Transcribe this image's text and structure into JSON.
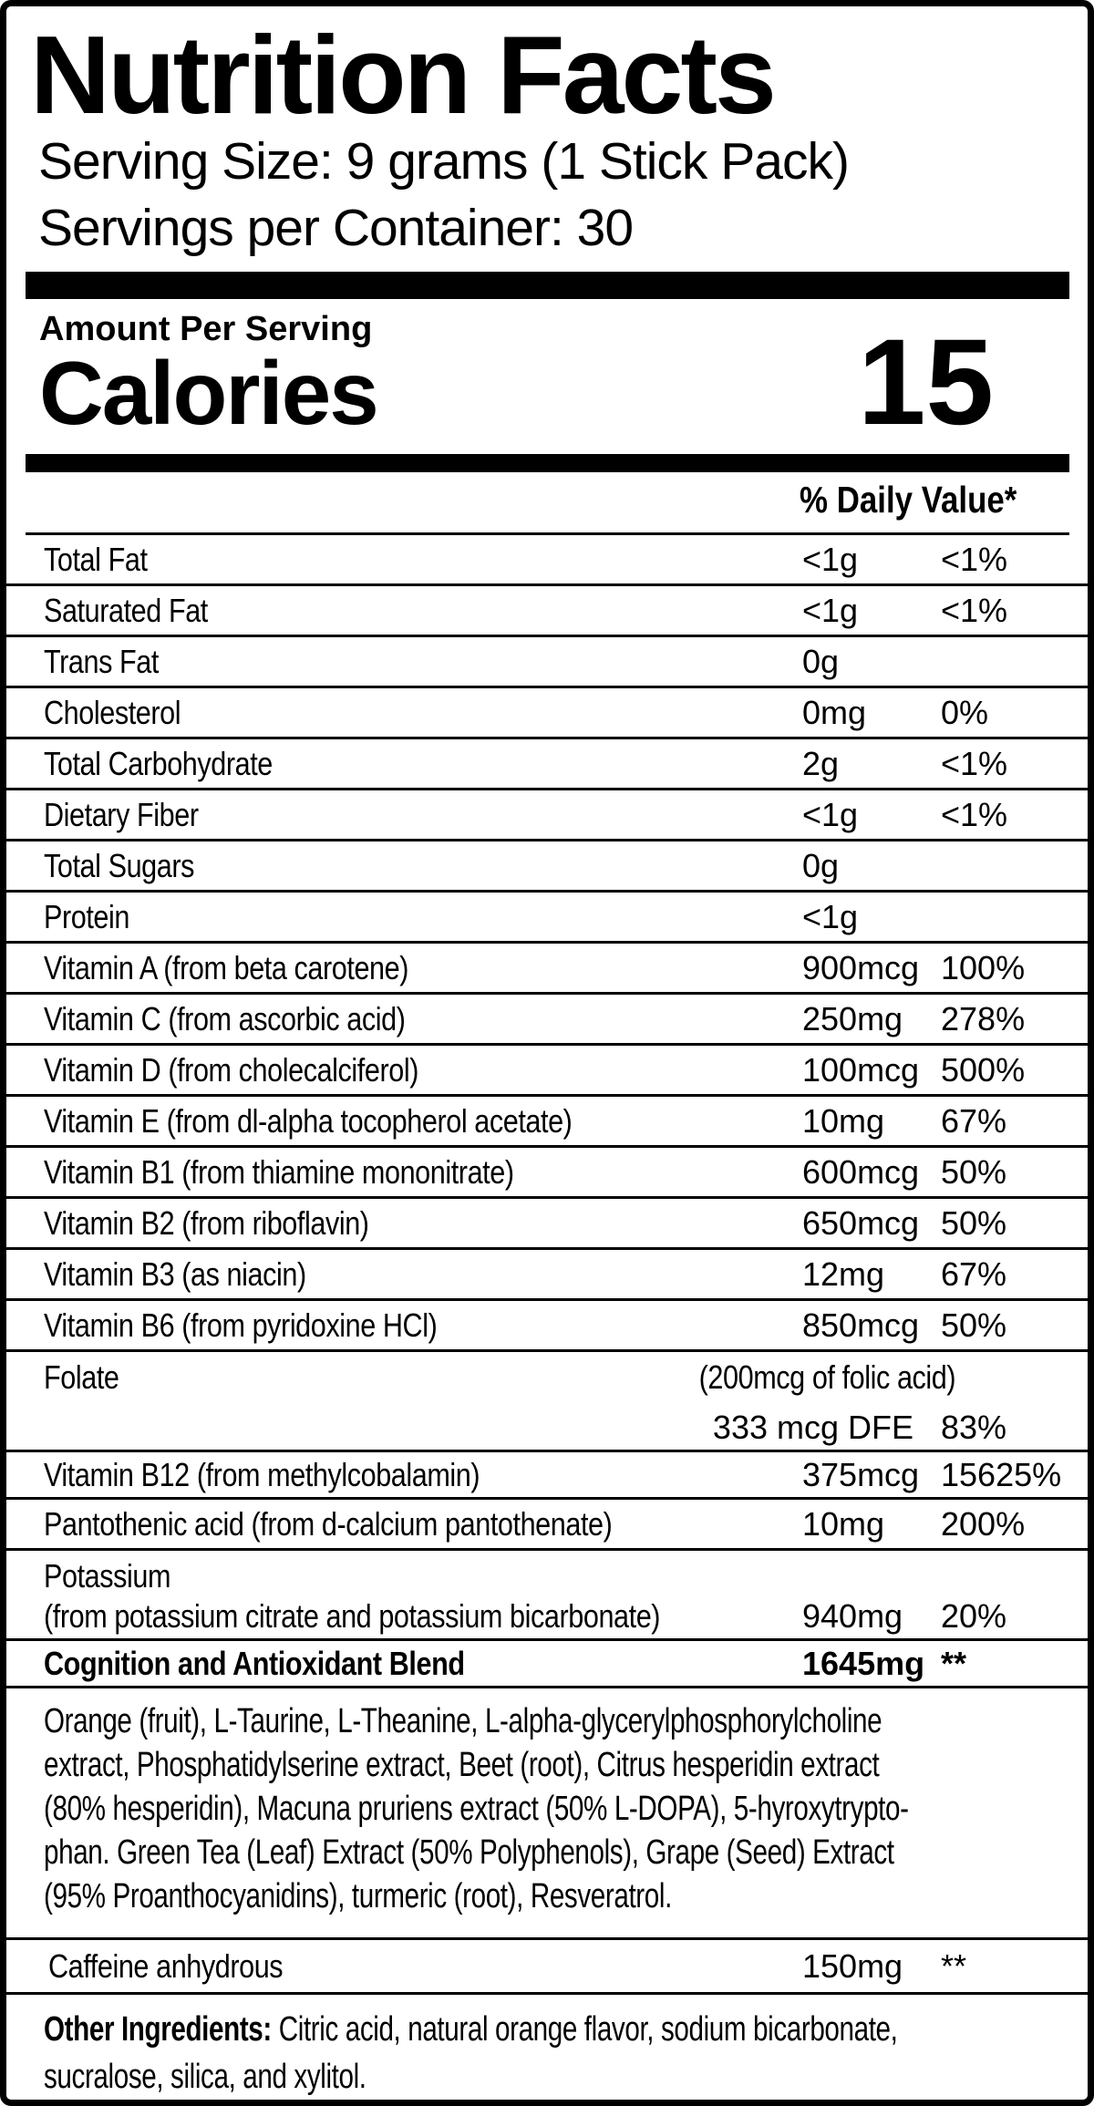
{
  "colors": {
    "ink": "#000000",
    "paper": "#ffffff"
  },
  "header": {
    "title": "Nutrition Facts",
    "serving_size": "Serving Size: 9 grams (1 Stick Pack)",
    "servings_per_container": "Servings per Container: 30",
    "amount_per_serving": "Amount Per Serving",
    "calories_label": "Calories",
    "calories_value": "15",
    "daily_value_header": "% Daily Value*"
  },
  "nutrients": [
    {
      "name": "Total Fat",
      "amount": "<1g",
      "dv": "<1%"
    },
    {
      "name": "Saturated Fat",
      "amount": "<1g",
      "dv": "<1%"
    },
    {
      "name": "Trans Fat",
      "amount": "0g",
      "dv": ""
    },
    {
      "name": "Cholesterol",
      "amount": "0mg",
      "dv": "0%"
    },
    {
      "name": "Total Carbohydrate",
      "amount": "2g",
      "dv": "<1%"
    },
    {
      "name": "Dietary Fiber",
      "amount": "<1g",
      "dv": "<1%"
    },
    {
      "name": "Total Sugars",
      "amount": "0g",
      "dv": ""
    },
    {
      "name": "Protein",
      "amount": "<1g",
      "dv": ""
    },
    {
      "name": "Vitamin A (from beta carotene)",
      "amount": "900mcg",
      "dv": "100%"
    },
    {
      "name": "Vitamin C (from ascorbic acid)",
      "amount": "250mg",
      "dv": "278%"
    },
    {
      "name": "Vitamin D (from cholecalciferol)",
      "amount": "100mcg",
      "dv": "500%"
    },
    {
      "name": "Vitamin E (from dl-alpha tocopherol acetate)",
      "amount": "10mg",
      "dv": "67%"
    },
    {
      "name": "Vitamin B1 (from thiamine mononitrate)",
      "amount": "600mcg",
      "dv": "50%"
    },
    {
      "name": "Vitamin B2 (from riboflavin)",
      "amount": "650mcg",
      "dv": "50%"
    },
    {
      "name": "Vitamin B3 (as niacin)",
      "amount": "12mg",
      "dv": "67%"
    },
    {
      "name": "Vitamin B6 (from pyridoxine HCl)",
      "amount": "850mcg",
      "dv": "50%"
    }
  ],
  "folate": {
    "name": "Folate",
    "note": "(200mcg of folic acid)",
    "amount": "333 mcg DFE",
    "dv": "83%"
  },
  "nutrients_after_folate": [
    {
      "name": "Vitamin B12 (from methylcobalamin)",
      "amount": "375mcg",
      "dv": "15625%"
    },
    {
      "name": "Pantothenic acid (from d-calcium pantothenate)",
      "amount": "10mg",
      "dv": "200%"
    }
  ],
  "potassium": {
    "name": "Potassium",
    "source": "(from potassium citrate and potassium bicarbonate)",
    "amount": "940mg",
    "dv": "20%"
  },
  "blend": {
    "name": "Cognition and Antioxidant Blend",
    "amount": "1645mg",
    "dv": "**"
  },
  "blend_description_lines": [
    "Orange (fruit), L-Taurine, L-Theanine, L-alpha-glycerylphosphorylcholine",
    "extract, Phosphatidylserine extract, Beet (root), Citrus hesperidin extract",
    "(80% hesperidin), Macuna pruriens extract (50% L-DOPA), 5-hyroxytrypto-",
    "phan. Green Tea (Leaf) Extract (50% Polyphenols), Grape (Seed) Extract",
    "(95% Proanthocyanidins), turmeric (root), Resveratrol."
  ],
  "caffeine": {
    "name": "Caffeine anhydrous",
    "amount": "150mg",
    "dv": "**"
  },
  "other_ingredients": {
    "prefix": "Other Ingredients:",
    "line1_rest": " Citric acid, natural orange flavor, sodium bicarbonate,",
    "line2": "sucralose, silica, and xylitol."
  }
}
